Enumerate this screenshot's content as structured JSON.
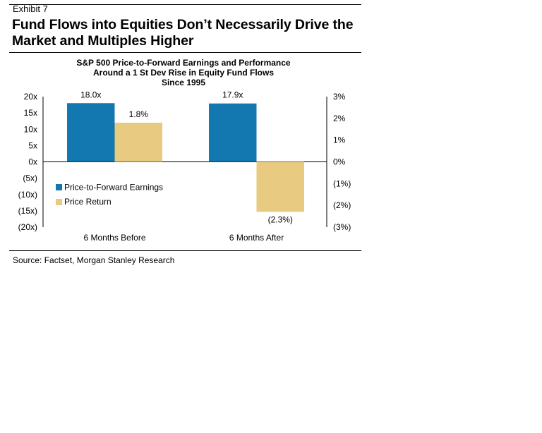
{
  "header": {
    "exhibit": "Exhibit 7",
    "title": "Fund Flows into Equities Don’t Necessarily Drive the Market and Multiples Higher"
  },
  "source": "Source: Factset, Morgan Stanley Research",
  "colors": {
    "pe": "#1478B0",
    "price": "#E8CB80"
  },
  "chart_data": {
    "type": "bar",
    "title_lines": [
      "S&P 500 Price-to-Forward Earnings and Performance",
      "Around a 1 St Dev Rise in Equity Fund Flows",
      "Since 1995"
    ],
    "categories": [
      "6 Months Before",
      "6 Months After"
    ],
    "series": [
      {
        "name": "Price-to-Forward Earnings",
        "axis": "left",
        "values": [
          18.0,
          17.9
        ],
        "labels": [
          "18.0x",
          "17.9x"
        ]
      },
      {
        "name": "Price Return",
        "axis": "right",
        "values": [
          1.8,
          -2.3
        ],
        "labels": [
          "1.8%",
          "(2.3%)"
        ]
      }
    ],
    "left_axis": {
      "ylim": [
        -20,
        20
      ],
      "ticks": [
        "20x",
        "15x",
        "10x",
        "5x",
        "0x",
        "(5x)",
        "(10x)",
        "(15x)",
        "(20x)"
      ]
    },
    "right_axis": {
      "ylim": [
        -3,
        3
      ],
      "ticks": [
        "3%",
        "2%",
        "1%",
        "0%",
        "(1%)",
        "(2%)",
        "(3%)"
      ]
    },
    "legend_position": "middle-left",
    "grid": false
  }
}
